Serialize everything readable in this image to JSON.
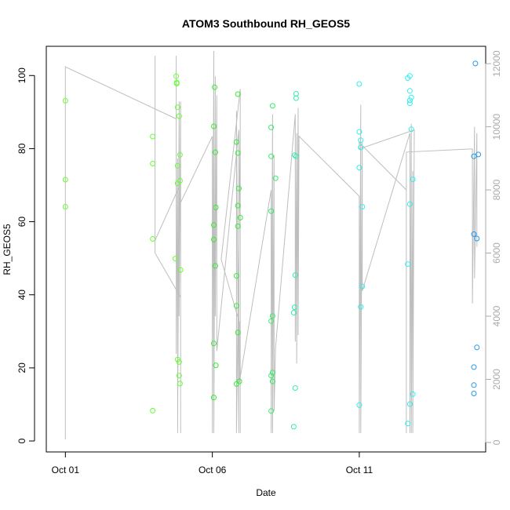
{
  "chart_data": {
    "type": "scatter",
    "title": "ATOM3 Southbound RH_GEOS5",
    "xlabel": "Date",
    "ylabel": "RH_GEOS5",
    "x_unit": "days since Oct 01",
    "xlim": [
      -0.65,
      14.3
    ],
    "ylim": [
      -3,
      108
    ],
    "y2lim": [
      -300,
      12550
    ],
    "x_ticks": [
      {
        "value": 0,
        "label": "Oct 01"
      },
      {
        "value": 5,
        "label": "Oct 06"
      },
      {
        "value": 10,
        "label": "Oct 11"
      }
    ],
    "y_ticks": [
      0,
      20,
      40,
      60,
      80,
      100
    ],
    "y2_ticks": [
      0,
      2000,
      4000,
      6000,
      8000,
      10000,
      12000
    ],
    "grid": false,
    "legend": "none",
    "colors": {
      "frame": "#000000",
      "altitude_line": "#bebebe",
      "right_axis": "#aaaaaa"
    },
    "series": [
      {
        "color": "#66ff33",
        "points": [
          {
            "x": 0.0,
            "y": 93.1
          },
          {
            "x": 0.0,
            "y": 71.5
          },
          {
            "x": 0.0,
            "y": 64.1
          },
          {
            "x": 2.97,
            "y": 83.3
          },
          {
            "x": 2.97,
            "y": 75.9
          },
          {
            "x": 2.97,
            "y": 55.3
          },
          {
            "x": 2.97,
            "y": 8.3
          },
          {
            "x": 3.77,
            "y": 99.8
          },
          {
            "x": 3.79,
            "y": 97.8
          },
          {
            "x": 3.79,
            "y": 98.1
          },
          {
            "x": 3.82,
            "y": 91.3
          },
          {
            "x": 3.87,
            "y": 88.9
          },
          {
            "x": 3.9,
            "y": 78.3
          },
          {
            "x": 3.82,
            "y": 75.3
          },
          {
            "x": 3.9,
            "y": 71.2
          },
          {
            "x": 3.82,
            "y": 70.5
          },
          {
            "x": 3.74,
            "y": 49.9
          },
          {
            "x": 3.92,
            "y": 46.8
          },
          {
            "x": 3.82,
            "y": 22.3
          },
          {
            "x": 3.87,
            "y": 21.6
          },
          {
            "x": 3.87,
            "y": 17.9
          },
          {
            "x": 3.9,
            "y": 15.7
          }
        ]
      },
      {
        "color": "#33ee33",
        "points": [
          {
            "x": 5.08,
            "y": 96.8
          },
          {
            "x": 5.05,
            "y": 86.1
          },
          {
            "x": 5.1,
            "y": 79.0
          },
          {
            "x": 5.12,
            "y": 63.9
          },
          {
            "x": 5.05,
            "y": 59.1
          },
          {
            "x": 5.05,
            "y": 55.1
          },
          {
            "x": 5.1,
            "y": 47.9
          },
          {
            "x": 5.05,
            "y": 26.7
          },
          {
            "x": 5.12,
            "y": 20.7
          },
          {
            "x": 5.05,
            "y": 11.9
          },
          {
            "x": 5.87,
            "y": 94.9
          },
          {
            "x": 5.82,
            "y": 81.8
          },
          {
            "x": 5.87,
            "y": 78.8
          },
          {
            "x": 5.9,
            "y": 69.1
          },
          {
            "x": 5.87,
            "y": 64.4
          },
          {
            "x": 5.95,
            "y": 61.1
          },
          {
            "x": 5.87,
            "y": 58.8
          },
          {
            "x": 5.82,
            "y": 45.2
          },
          {
            "x": 5.82,
            "y": 37.0
          },
          {
            "x": 5.87,
            "y": 29.7
          },
          {
            "x": 5.82,
            "y": 15.6
          },
          {
            "x": 5.92,
            "y": 16.3
          }
        ]
      },
      {
        "color": "#33ee66",
        "points": [
          {
            "x": 7.05,
            "y": 91.7
          },
          {
            "x": 7.0,
            "y": 85.8
          },
          {
            "x": 7.0,
            "y": 77.9
          },
          {
            "x": 7.15,
            "y": 71.9
          },
          {
            "x": 7.0,
            "y": 62.9
          },
          {
            "x": 7.05,
            "y": 34.2
          },
          {
            "x": 7.0,
            "y": 32.8
          },
          {
            "x": 7.05,
            "y": 18.7
          },
          {
            "x": 7.0,
            "y": 17.9
          },
          {
            "x": 7.05,
            "y": 16.3
          },
          {
            "x": 7.0,
            "y": 8.2
          }
        ]
      },
      {
        "color": "#33eeaa",
        "points": [
          {
            "x": 7.85,
            "y": 95.0
          },
          {
            "x": 7.85,
            "y": 93.8
          },
          {
            "x": 7.8,
            "y": 78.2
          },
          {
            "x": 7.85,
            "y": 77.9
          },
          {
            "x": 7.82,
            "y": 45.4
          },
          {
            "x": 7.8,
            "y": 36.6
          },
          {
            "x": 7.77,
            "y": 35.1
          },
          {
            "x": 7.82,
            "y": 14.5
          },
          {
            "x": 7.77,
            "y": 3.9
          }
        ]
      },
      {
        "color": "#33eeee",
        "points": [
          {
            "x": 10.0,
            "y": 97.7
          },
          {
            "x": 10.0,
            "y": 84.6
          },
          {
            "x": 10.05,
            "y": 82.3
          },
          {
            "x": 10.05,
            "y": 80.3
          },
          {
            "x": 10.0,
            "y": 74.8
          },
          {
            "x": 10.1,
            "y": 64.1
          },
          {
            "x": 10.1,
            "y": 42.3
          },
          {
            "x": 10.05,
            "y": 36.7
          },
          {
            "x": 10.0,
            "y": 9.8
          },
          {
            "x": 11.65,
            "y": 99.3
          },
          {
            "x": 11.72,
            "y": 99.9
          },
          {
            "x": 11.72,
            "y": 95.8
          },
          {
            "x": 11.77,
            "y": 94.0
          },
          {
            "x": 11.72,
            "y": 93.2
          },
          {
            "x": 11.72,
            "y": 92.4
          },
          {
            "x": 11.77,
            "y": 85.3
          },
          {
            "x": 11.82,
            "y": 71.6
          },
          {
            "x": 11.72,
            "y": 64.8
          },
          {
            "x": 11.65,
            "y": 48.4
          },
          {
            "x": 11.82,
            "y": 12.8
          },
          {
            "x": 11.72,
            "y": 10.1
          },
          {
            "x": 11.65,
            "y": 4.8
          }
        ]
      },
      {
        "color": "#2299ee",
        "points": [
          {
            "x": 13.95,
            "y": 103.3
          },
          {
            "x": 13.9,
            "y": 77.9
          },
          {
            "x": 14.05,
            "y": 78.4
          },
          {
            "x": 13.9,
            "y": 56.6
          },
          {
            "x": 14.0,
            "y": 55.4
          },
          {
            "x": 14.0,
            "y": 25.6
          },
          {
            "x": 13.9,
            "y": 20.2
          },
          {
            "x": 13.9,
            "y": 15.3
          },
          {
            "x": 13.9,
            "y": 13.0
          }
        ]
      }
    ],
    "altitude_line": {
      "axis": "right",
      "points": [
        {
          "x": 0.0,
          "y": 11900
        },
        {
          "x": 0.0,
          "y": 100
        },
        {
          "x": 0.0,
          "y": 11900
        },
        {
          "x": 3.77,
          "y": 10250
        },
        {
          "x": 3.77,
          "y": 5700
        },
        {
          "x": 3.77,
          "y": 12250
        },
        {
          "x": 3.77,
          "y": 2800
        },
        {
          "x": 3.82,
          "y": 9000
        },
        {
          "x": 3.82,
          "y": 300
        },
        {
          "x": 3.87,
          "y": 10800
        },
        {
          "x": 3.87,
          "y": 4000
        },
        {
          "x": 3.92,
          "y": 10800
        },
        {
          "x": 3.92,
          "y": 300
        },
        {
          "x": 3.92,
          "y": 8200
        },
        {
          "x": 3.05,
          "y": 6400
        },
        {
          "x": 3.05,
          "y": 12250
        },
        {
          "x": 3.05,
          "y": 6000
        },
        {
          "x": 3.92,
          "y": 4600
        },
        {
          "x": 3.92,
          "y": 7600
        },
        {
          "x": 5.0,
          "y": 9700
        },
        {
          "x": 5.0,
          "y": 300
        },
        {
          "x": 5.05,
          "y": 12400
        },
        {
          "x": 5.05,
          "y": 300
        },
        {
          "x": 5.1,
          "y": 11600
        },
        {
          "x": 5.1,
          "y": 4000
        },
        {
          "x": 5.15,
          "y": 11000
        },
        {
          "x": 5.15,
          "y": 2900
        },
        {
          "x": 5.9,
          "y": 9900
        },
        {
          "x": 5.9,
          "y": 300
        },
        {
          "x": 5.82,
          "y": 10500
        },
        {
          "x": 5.82,
          "y": 300
        },
        {
          "x": 5.95,
          "y": 10000
        },
        {
          "x": 5.95,
          "y": 300
        },
        {
          "x": 5.95,
          "y": 11200
        },
        {
          "x": 5.3,
          "y": 5800
        },
        {
          "x": 5.92,
          "y": 3800
        },
        {
          "x": 5.92,
          "y": 1900
        },
        {
          "x": 7.0,
          "y": 8000
        },
        {
          "x": 7.0,
          "y": 300
        },
        {
          "x": 7.05,
          "y": 10400
        },
        {
          "x": 7.05,
          "y": 300
        },
        {
          "x": 7.1,
          "y": 9100
        },
        {
          "x": 7.1,
          "y": 1000
        },
        {
          "x": 7.15,
          "y": 3000
        },
        {
          "x": 7.82,
          "y": 10400
        },
        {
          "x": 7.82,
          "y": 3200
        },
        {
          "x": 7.87,
          "y": 9800
        },
        {
          "x": 7.87,
          "y": 2500
        },
        {
          "x": 7.92,
          "y": 10600
        },
        {
          "x": 7.92,
          "y": 3400
        },
        {
          "x": 7.95,
          "y": 9700
        },
        {
          "x": 10.0,
          "y": 7800
        },
        {
          "x": 10.0,
          "y": 300
        },
        {
          "x": 10.05,
          "y": 10700
        },
        {
          "x": 10.05,
          "y": 300
        },
        {
          "x": 10.1,
          "y": 9500
        },
        {
          "x": 10.1,
          "y": 4800
        },
        {
          "x": 11.72,
          "y": 9800
        },
        {
          "x": 11.72,
          "y": 300
        },
        {
          "x": 11.77,
          "y": 10100
        },
        {
          "x": 11.77,
          "y": 300
        },
        {
          "x": 11.82,
          "y": 8600
        },
        {
          "x": 11.82,
          "y": 300
        },
        {
          "x": 11.87,
          "y": 9900
        },
        {
          "x": 10.0,
          "y": 9300
        },
        {
          "x": 10.0,
          "y": 9500
        },
        {
          "x": 11.6,
          "y": 8000
        },
        {
          "x": 11.6,
          "y": 300
        },
        {
          "x": 11.6,
          "y": 9200
        },
        {
          "x": 13.85,
          "y": 9300
        },
        {
          "x": 13.85,
          "y": 4400
        },
        {
          "x": 13.92,
          "y": 10000
        },
        {
          "x": 13.92,
          "y": 5200
        },
        {
          "x": 14.0,
          "y": 9800
        },
        {
          "x": 14.0,
          "y": 6200
        }
      ]
    }
  }
}
